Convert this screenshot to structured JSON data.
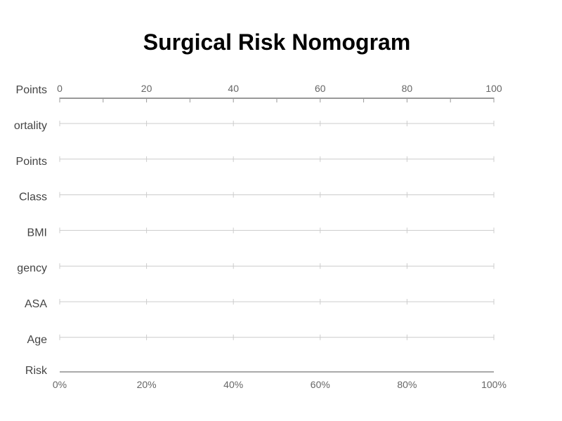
{
  "chart_data": {
    "type": "nomogram",
    "title": "Surgical Risk Nomogram",
    "colors": {
      "points_axis": "#999999",
      "row_line": "#cccccc",
      "risk_axis": "#aaaaaa",
      "label_text": "#444444",
      "tick_text": "#666666"
    },
    "points_axis": {
      "label": "Points",
      "range": [
        0,
        100
      ],
      "major_ticks": [
        0,
        20,
        40,
        60,
        80,
        100
      ],
      "minor_tick_step": 10
    },
    "rows": [
      {
        "label": "ortality"
      },
      {
        "label": "Points"
      },
      {
        "label": "Class"
      },
      {
        "label": "BMI"
      },
      {
        "label": "gency"
      },
      {
        "label": "ASA"
      },
      {
        "label": "Age"
      }
    ],
    "row_ticks": [
      0,
      20,
      40,
      60,
      80,
      100
    ],
    "risk_axis": {
      "label": "Risk",
      "range": [
        0,
        100
      ],
      "tick_values": [
        0,
        20,
        40,
        60,
        80,
        100
      ],
      "tick_labels": [
        "0%",
        "20%",
        "40%",
        "60%",
        "80%",
        "100%"
      ]
    }
  }
}
